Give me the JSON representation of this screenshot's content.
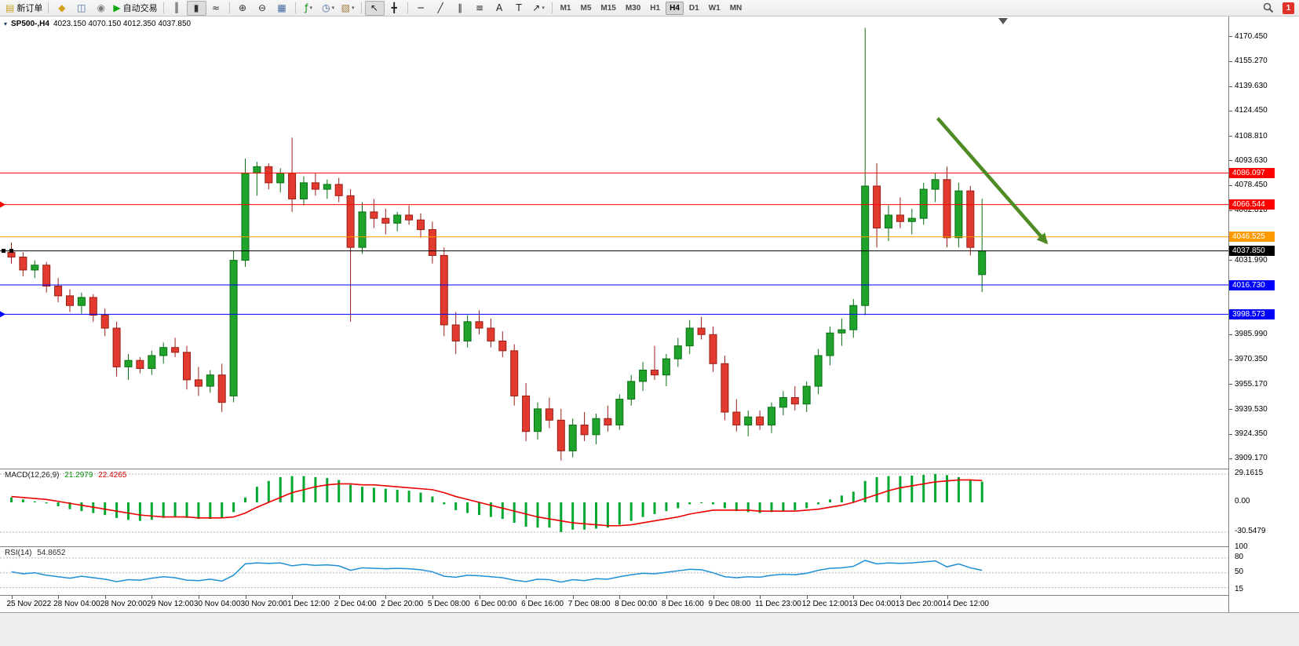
{
  "notifications": {
    "count": "1"
  },
  "toolbar": {
    "items": [
      {
        "name": "new-order-button",
        "type": "button",
        "glyph": "▤",
        "glyph_color": "#c9a227",
        "label": "新订单"
      },
      {
        "type": "sep"
      },
      {
        "name": "charts-icon",
        "type": "icon",
        "glyph": "◆",
        "color": "#d4a017"
      },
      {
        "name": "market-watch-icon",
        "type": "icon",
        "glyph": "◫",
        "color": "#44699d"
      },
      {
        "name": "navigator-icon",
        "type": "icon",
        "glyph": "◉",
        "color": "#7d7d7d"
      },
      {
        "name": "autotrading-button",
        "type": "button",
        "glyph": "▶",
        "glyph_color": "#12a812",
        "label": "自动交易"
      },
      {
        "type": "sep"
      },
      {
        "name": "ohlc-bars-icon",
        "type": "icon",
        "glyph": "║",
        "color": "#333333"
      },
      {
        "name": "candlestick-chart-icon",
        "type": "icon",
        "glyph": "▮",
        "color": "#333333",
        "active": true
      },
      {
        "name": "line-chart-icon",
        "type": "icon",
        "glyph": "≈",
        "color": "#333333"
      },
      {
        "type": "sep"
      },
      {
        "name": "zoom-in-icon",
        "type": "icon",
        "glyph": "⊕",
        "color": "#333333"
      },
      {
        "name": "zoom-out-icon",
        "type": "icon",
        "glyph": "⊖",
        "color": "#333333"
      },
      {
        "name": "tile-windows-icon",
        "type": "icon",
        "glyph": "▦",
        "color": "#44699d"
      },
      {
        "type": "sep"
      },
      {
        "name": "indicators-icon",
        "type": "icon",
        "glyph": "ƒ",
        "color": "#0a8f0a",
        "caret": true
      },
      {
        "name": "periods-icon",
        "type": "icon",
        "glyph": "◷",
        "color": "#44699d",
        "caret": true
      },
      {
        "name": "templates-icon",
        "type": "icon",
        "glyph": "▧",
        "color": "#9c7a3c",
        "caret": true
      },
      {
        "type": "sep"
      },
      {
        "name": "cursor-icon",
        "type": "icon",
        "glyph": "↖",
        "color": "#222222",
        "active": true
      },
      {
        "name": "crosshair-icon",
        "type": "icon",
        "glyph": "╋",
        "color": "#222222"
      },
      {
        "type": "sep"
      },
      {
        "name": "hline-icon",
        "type": "icon",
        "glyph": "─",
        "color": "#222222"
      },
      {
        "name": "trendline-icon",
        "type": "icon",
        "glyph": "╱",
        "color": "#222222"
      },
      {
        "name": "channel-icon",
        "type": "icon",
        "glyph": "∥",
        "color": "#222222"
      },
      {
        "name": "fibonacci-icon",
        "type": "icon",
        "glyph": "≡",
        "color": "#222222"
      },
      {
        "name": "text-icon",
        "type": "icon",
        "glyph": "A",
        "color": "#222222"
      },
      {
        "name": "label-icon",
        "type": "icon",
        "glyph": "T",
        "color": "#222222"
      },
      {
        "name": "arrows-icon",
        "type": "icon",
        "glyph": "↗",
        "color": "#222222",
        "caret": true
      },
      {
        "type": "sep"
      },
      {
        "name": "tf-m1",
        "type": "tf",
        "label": "M1"
      },
      {
        "name": "tf-m5",
        "type": "tf",
        "label": "M5"
      },
      {
        "name": "tf-m15",
        "type": "tf",
        "label": "M15"
      },
      {
        "name": "tf-m30",
        "type": "tf",
        "label": "M30"
      },
      {
        "name": "tf-h1",
        "type": "tf",
        "label": "H1"
      },
      {
        "name": "tf-h4",
        "type": "tf",
        "label": "H4",
        "active": true
      },
      {
        "name": "tf-d1",
        "type": "tf",
        "label": "D1"
      },
      {
        "name": "tf-w1",
        "type": "tf",
        "label": "W1"
      },
      {
        "name": "tf-mn",
        "type": "tf",
        "label": "MN"
      }
    ]
  },
  "chart": {
    "collapse_icon_glyph": "▾",
    "symbol_period": "SP500-,H4",
    "ohlc_text": "4023.150 4070.150 4012.350 4037.850"
  },
  "colors": {
    "bull": "#1fa32a",
    "bull_border": "#0b6e14",
    "bear": "#e23a2e",
    "bear_border": "#991e16",
    "macd_bar": "#00a832",
    "macd_signal": "#ee0000",
    "rsi_line": "#1e8fd5",
    "level_dash": "#b4b4b4",
    "arrow": "#4e8b25",
    "price_line": "#000000"
  },
  "chart_data": {
    "type": "candlestick",
    "symbol": "SP500-",
    "period": "H4",
    "last_candle": {
      "open": "4023.150",
      "high": "4070.150",
      "low": "4012.350",
      "close": "4037.850"
    },
    "price_range": {
      "min": 3903,
      "max": 4183
    },
    "price_ticks": [
      "4170.450",
      "4155.270",
      "4139.630",
      "4124.450",
      "4108.810",
      "4093.630",
      "4078.450",
      "4062.810",
      "4031.990",
      "3985.990",
      "3970.350",
      "3955.170",
      "3939.530",
      "3924.350",
      "3909.170"
    ],
    "hlines": [
      {
        "price": 4086.097,
        "label": "4086.097",
        "color": "#ff0000",
        "left_marker": false
      },
      {
        "price": 4066.544,
        "label": "4066.544",
        "color": "#ff0000",
        "left_marker": true
      },
      {
        "price": 4046.525,
        "label": "4046.525",
        "color": "#ff9900",
        "left_marker": false
      },
      {
        "price": 4016.73,
        "label": "4016.730",
        "color": "#0000ff",
        "left_marker": false
      },
      {
        "price": 3998.573,
        "label": "3998.573",
        "color": "#0000ff",
        "left_marker": true
      }
    ],
    "current_price": {
      "price": 4037.85,
      "label": "4037.850",
      "color": "#000000"
    },
    "annotation_arrow": {
      "bar1": 79.2,
      "price1": 4120,
      "bar2": 88.5,
      "price2": 4043
    },
    "time_labels": [
      "25 Nov 2022",
      "28 Nov 04:00",
      "28 Nov 20:00",
      "29 Nov 12:00",
      "30 Nov 04:00",
      "30 Nov 20:00",
      "1 Dec 12:00",
      "2 Dec 04:00",
      "2 Dec 20:00",
      "5 Dec 08:00",
      "6 Dec 00:00",
      "6 Dec 16:00",
      "7 Dec 08:00",
      "8 Dec 00:00",
      "8 Dec 16:00",
      "9 Dec 08:00",
      "11 Dec 23:00",
      "12 Dec 12:00",
      "13 Dec 04:00",
      "13 Dec 20:00",
      "14 Dec 12:00"
    ],
    "label_step": 4,
    "candles": [
      [
        4037,
        4043,
        4030,
        4034
      ],
      [
        4034,
        4037,
        4022,
        4026
      ],
      [
        4026,
        4032,
        4021,
        4029
      ],
      [
        4029,
        4031,
        4012,
        4016
      ],
      [
        4016,
        4021,
        4006,
        4010
      ],
      [
        4010,
        4014,
        4000,
        4004
      ],
      [
        4004,
        4012,
        3999,
        4009
      ],
      [
        4009,
        4011,
        3994,
        3998
      ],
      [
        3998,
        4002,
        3985,
        3990
      ],
      [
        3990,
        3994,
        3960,
        3966
      ],
      [
        3966,
        3974,
        3958,
        3970
      ],
      [
        3970,
        3972,
        3962,
        3965
      ],
      [
        3965,
        3976,
        3961,
        3973
      ],
      [
        3973,
        3981,
        3968,
        3978
      ],
      [
        3978,
        3984,
        3972,
        3975
      ],
      [
        3975,
        3979,
        3952,
        3958
      ],
      [
        3958,
        3966,
        3948,
        3954
      ],
      [
        3954,
        3964,
        3950,
        3961
      ],
      [
        3961,
        3968,
        3938,
        3944
      ],
      [
        3948,
        4038,
        3944,
        4032
      ],
      [
        4032,
        4095,
        4028,
        4086
      ],
      [
        4086,
        4093,
        4072,
        4090
      ],
      [
        4090,
        4092,
        4076,
        4080
      ],
      [
        4080,
        4089,
        4074,
        4086
      ],
      [
        4086,
        4108,
        4062,
        4070
      ],
      [
        4070,
        4084,
        4066,
        4080
      ],
      [
        4080,
        4086,
        4072,
        4076
      ],
      [
        4076,
        4082,
        4070,
        4079
      ],
      [
        4079,
        4083,
        4068,
        4072
      ],
      [
        4072,
        4076,
        3994,
        4040
      ],
      [
        4040,
        4068,
        4036,
        4062
      ],
      [
        4062,
        4070,
        4052,
        4058
      ],
      [
        4058,
        4064,
        4048,
        4055
      ],
      [
        4055,
        4062,
        4050,
        4060
      ],
      [
        4060,
        4066,
        4054,
        4057
      ],
      [
        4057,
        4061,
        4046,
        4051
      ],
      [
        4051,
        4056,
        4030,
        4035
      ],
      [
        4035,
        4040,
        3985,
        3992
      ],
      [
        3992,
        4000,
        3974,
        3982
      ],
      [
        3982,
        3998,
        3978,
        3994
      ],
      [
        3994,
        4001,
        3986,
        3990
      ],
      [
        3990,
        3996,
        3978,
        3982
      ],
      [
        3982,
        3988,
        3972,
        3976
      ],
      [
        3976,
        3980,
        3942,
        3948
      ],
      [
        3948,
        3956,
        3920,
        3926
      ],
      [
        3926,
        3944,
        3921,
        3940
      ],
      [
        3940,
        3947,
        3928,
        3933
      ],
      [
        3933,
        3940,
        3908,
        3914
      ],
      [
        3914,
        3934,
        3910,
        3930
      ],
      [
        3930,
        3938,
        3920,
        3924
      ],
      [
        3924,
        3937,
        3918,
        3934
      ],
      [
        3934,
        3942,
        3926,
        3930
      ],
      [
        3930,
        3949,
        3927,
        3946
      ],
      [
        3946,
        3961,
        3942,
        3957
      ],
      [
        3957,
        3969,
        3951,
        3964
      ],
      [
        3964,
        3979,
        3958,
        3961
      ],
      [
        3961,
        3974,
        3954,
        3971
      ],
      [
        3971,
        3984,
        3966,
        3979
      ],
      [
        3979,
        3995,
        3974,
        3990
      ],
      [
        3990,
        3997,
        3983,
        3986
      ],
      [
        3986,
        3991,
        3963,
        3968
      ],
      [
        3968,
        3973,
        3933,
        3938
      ],
      [
        3938,
        3946,
        3926,
        3930
      ],
      [
        3930,
        3939,
        3923,
        3935
      ],
      [
        3935,
        3939,
        3927,
        3930
      ],
      [
        3930,
        3944,
        3925,
        3941
      ],
      [
        3941,
        3951,
        3936,
        3947
      ],
      [
        3947,
        3954,
        3939,
        3943
      ],
      [
        3943,
        3957,
        3938,
        3954
      ],
      [
        3954,
        3977,
        3949,
        3973
      ],
      [
        3973,
        3991,
        3967,
        3987
      ],
      [
        3987,
        3996,
        3979,
        3989
      ],
      [
        3989,
        4008,
        3984,
        4004
      ],
      [
        4004,
        4176,
        3998,
        4078
      ],
      [
        4078,
        4092,
        4040,
        4052
      ],
      [
        4052,
        4066,
        4044,
        4060
      ],
      [
        4060,
        4071,
        4052,
        4056
      ],
      [
        4056,
        4064,
        4048,
        4058
      ],
      [
        4058,
        4080,
        4054,
        4076
      ],
      [
        4076,
        4086,
        4068,
        4082
      ],
      [
        4082,
        4090,
        4040,
        4046
      ],
      [
        4046,
        4080,
        4040,
        4075
      ],
      [
        4075,
        4078,
        4035,
        4040
      ],
      [
        4023.15,
        4070.15,
        4012.35,
        4037.85
      ]
    ],
    "macd": {
      "name": "MACD(12,26,9)",
      "value_main": "21.2979",
      "value_signal": "22.4265",
      "axis_ticks": [
        {
          "v": 29.1615,
          "t": "29.1615"
        },
        {
          "v": 0,
          "t": "0.00"
        },
        {
          "v": -30.5479,
          "t": "-30.5479"
        }
      ],
      "level_lines": [
        29.1615,
        -30.5479
      ],
      "histogram": [
        5,
        3,
        1,
        -1,
        -4,
        -7,
        -9,
        -11,
        -13,
        -16,
        -18,
        -19,
        -18,
        -16,
        -15,
        -16,
        -17,
        -17,
        -16,
        -10,
        5,
        16,
        22,
        26,
        27,
        27,
        26,
        25,
        23,
        18,
        16,
        15,
        14,
        13,
        12,
        10,
        6,
        -2,
        -8,
        -11,
        -13,
        -15,
        -17,
        -21,
        -25,
        -26,
        -26,
        -30.5479,
        -28,
        -28,
        -27,
        -26,
        -23,
        -19,
        -15,
        -12,
        -9,
        -6,
        -2,
        0,
        -2,
        -6,
        -9,
        -10,
        -11,
        -10,
        -9,
        -8,
        -6,
        -2,
        3,
        7,
        11,
        22,
        26,
        27,
        27,
        27.5,
        28.3,
        29.1615,
        28,
        26,
        23,
        21.2979
      ],
      "signal": [
        6,
        5,
        4,
        3,
        1,
        -1,
        -3,
        -5,
        -7,
        -9,
        -11,
        -13,
        -14,
        -15,
        -15,
        -15,
        -16,
        -16,
        -16,
        -15,
        -11,
        -5,
        0,
        5,
        10,
        13,
        16,
        18,
        19,
        19,
        18,
        18,
        17,
        16,
        15,
        14,
        13,
        10,
        6,
        3,
        0,
        -3,
        -6,
        -9,
        -12,
        -15,
        -17,
        -19,
        -21,
        -22,
        -23,
        -24,
        -24,
        -23,
        -21,
        -19,
        -17,
        -15,
        -12,
        -10,
        -8,
        -8,
        -8,
        -8,
        -9,
        -9,
        -9,
        -9,
        -8,
        -7,
        -5,
        -3,
        0,
        4,
        8,
        12,
        15,
        17,
        19,
        21,
        22,
        23,
        23,
        22.4265
      ]
    },
    "rsi": {
      "name": "RSI(14)",
      "value": "54.8652",
      "axis_ticks": [
        {
          "v": 100,
          "t": "100"
        },
        {
          "v": 80,
          "t": "80"
        },
        {
          "v": 50,
          "t": "50"
        },
        {
          "v": 15,
          "t": "15"
        }
      ],
      "level_lines": [
        80,
        50,
        20
      ],
      "values": [
        52,
        48,
        50,
        45,
        42,
        39,
        43,
        40,
        37,
        32,
        36,
        35,
        39,
        42,
        40,
        35,
        34,
        37,
        33,
        45,
        68,
        70,
        69,
        70,
        64,
        67,
        65,
        66,
        64,
        55,
        60,
        59,
        58,
        59,
        58,
        56,
        52,
        43,
        41,
        45,
        44,
        42,
        40,
        35,
        32,
        37,
        36,
        31,
        36,
        34,
        38,
        37,
        42,
        46,
        49,
        48,
        51,
        54,
        57,
        56,
        50,
        42,
        40,
        42,
        41,
        45,
        47,
        46,
        49,
        55,
        59,
        60,
        63,
        75,
        68,
        70,
        69,
        70,
        72,
        74,
        62,
        68,
        60,
        54.8652
      ]
    }
  }
}
